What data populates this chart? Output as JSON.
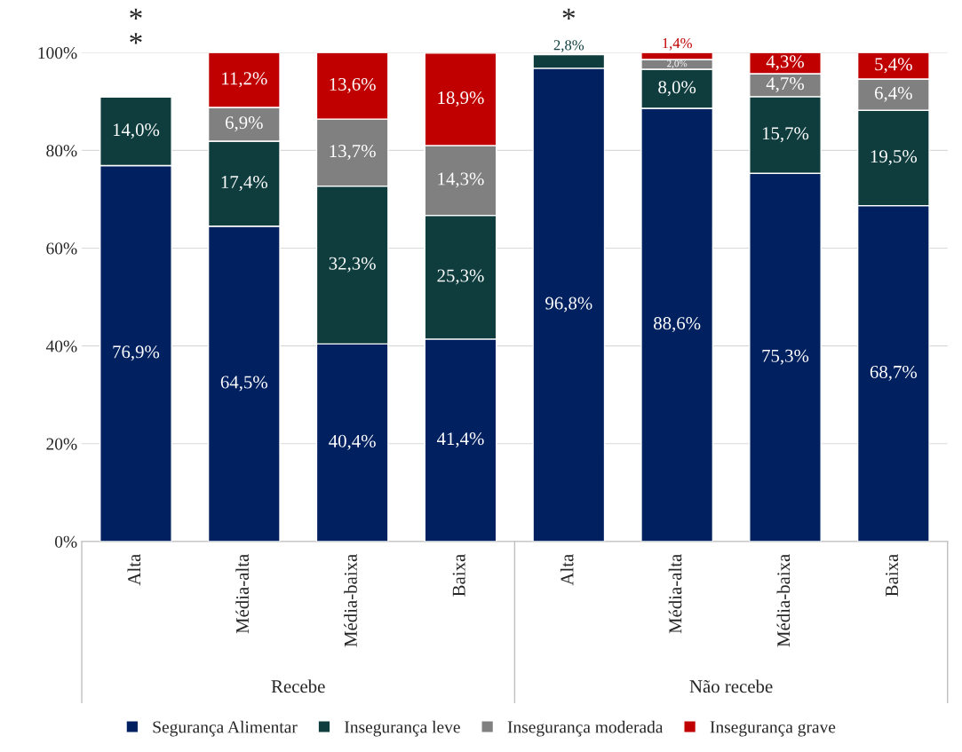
{
  "chart_data": {
    "type": "bar",
    "stacked": true,
    "categories": [
      "Alta",
      "Média-alta",
      "Média-baixa",
      "Baixa",
      "Alta",
      "Média-alta",
      "Média-baixa",
      "Baixa"
    ],
    "series": [
      {
        "name": "Segurança Alimentar",
        "color": "#002060",
        "values": [
          76.9,
          64.5,
          40.4,
          41.4,
          96.8,
          88.6,
          75.3,
          68.7
        ],
        "value_labels": [
          "76,9%",
          "64,5%",
          "40,4%",
          "41,4%",
          "96,8%",
          "88,6%",
          "75,3%",
          "68,7%"
        ]
      },
      {
        "name": "Insegurança leve",
        "color": "#0f3d3e",
        "values": [
          14.0,
          17.4,
          32.3,
          25.3,
          2.8,
          8.0,
          15.7,
          19.5
        ],
        "value_labels": [
          "14,0%",
          "17,4%",
          "32,3%",
          "25,3%",
          "2,8%",
          "8,0%",
          "15,7%",
          "19,5%"
        ]
      },
      {
        "name": "Insegurança moderada",
        "color": "#808080",
        "values": [
          null,
          6.9,
          13.7,
          14.3,
          null,
          2.0,
          4.7,
          6.4
        ],
        "value_labels": [
          null,
          "6,9%",
          "13,7%",
          "14,3%",
          null,
          "2,0%",
          "4,7%",
          "6,4%"
        ]
      },
      {
        "name": "Insegurança grave",
        "color": "#c00000",
        "values": [
          null,
          11.2,
          13.6,
          18.9,
          null,
          1.4,
          4.3,
          5.4
        ],
        "value_labels": [
          null,
          "11,2%",
          "13,6%",
          "18,9%",
          null,
          "1,4%",
          "4,3%",
          "5,4%"
        ]
      }
    ],
    "ylim": [
      0,
      100
    ],
    "yticks": [
      {
        "value": 0,
        "label": "0%"
      },
      {
        "value": 20,
        "label": "20%"
      },
      {
        "value": 40,
        "label": "40%"
      },
      {
        "value": 60,
        "label": "60%"
      },
      {
        "value": 80,
        "label": "80%"
      },
      {
        "value": 100,
        "label": "100%"
      }
    ],
    "grid": "y",
    "legend": "bottom",
    "annotations": [
      "*",
      "*",
      "*",
      "Recebe",
      "Não recebe"
    ]
  }
}
